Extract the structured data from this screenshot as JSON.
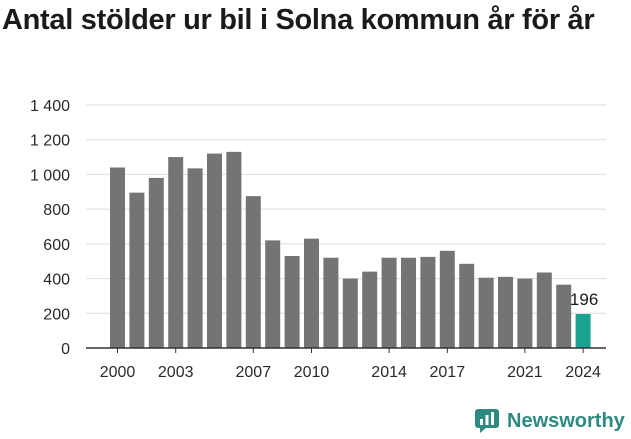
{
  "chart_data": {
    "type": "bar",
    "title": "Antal stölder ur bil i Solna kommun år för år",
    "xlabel": "",
    "ylabel": "",
    "categories": [
      "2000",
      "2001",
      "2002",
      "2003",
      "2004",
      "2005",
      "2006",
      "2007",
      "2008",
      "2009",
      "2010",
      "2011",
      "2012",
      "2013",
      "2014",
      "2015",
      "2016",
      "2017",
      "2018",
      "2019",
      "2020",
      "2021",
      "2022",
      "2023",
      "2024"
    ],
    "values": [
      1040,
      895,
      980,
      1100,
      1035,
      1120,
      1130,
      875,
      620,
      530,
      630,
      520,
      400,
      440,
      520,
      520,
      525,
      560,
      485,
      405,
      410,
      400,
      435,
      365,
      196
    ],
    "x_tick_labels": [
      "2000",
      "2003",
      "2007",
      "2010",
      "2014",
      "2017",
      "2021",
      "2024"
    ],
    "y_tick_labels": [
      "0",
      "200",
      "400",
      "600",
      "800",
      "1 000",
      "1 200",
      "1 400"
    ],
    "ylim": [
      0,
      1400
    ],
    "grid": true,
    "legend": "none",
    "annotations": [
      {
        "category": "2024",
        "text": "196"
      }
    ],
    "colors": {
      "bar": "#747476",
      "highlight": "#1aa391",
      "grid": "#dddddd"
    }
  },
  "brand": {
    "name": "Newsworthy",
    "icon": "newsworthy-logo-icon",
    "color": "#2e8a80"
  }
}
